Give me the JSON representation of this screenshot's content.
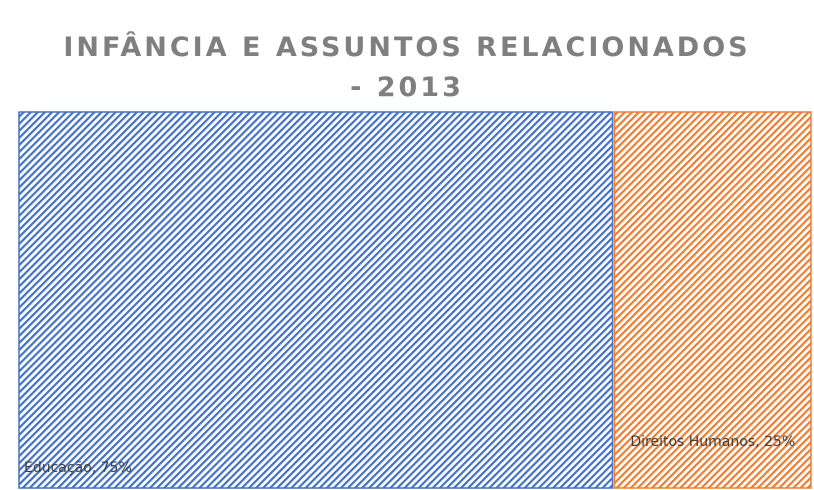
{
  "chart_data": {
    "type": "treemap",
    "title": "INFÂNCIA E ASSUNTOS RELACIONADOS - 2013",
    "values": [
      75,
      25
    ],
    "value_labels": [
      "Educação, 75%",
      "Direitos Humanos, 25%"
    ],
    "colors": [
      "#4472c4",
      "#ed7d31"
    ]
  }
}
